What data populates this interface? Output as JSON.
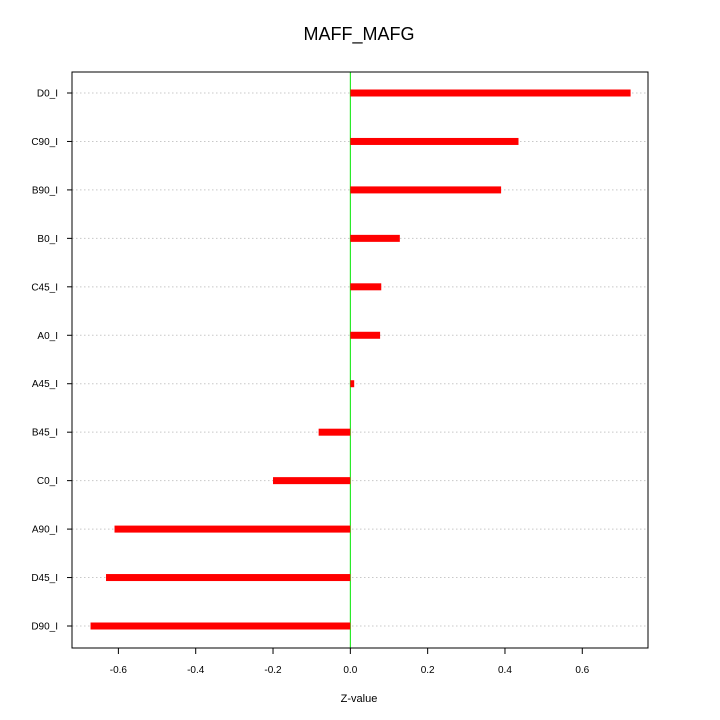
{
  "chart_data": {
    "type": "bar",
    "orientation": "horizontal",
    "title": "MAFF_MAFG",
    "xlabel": "Z-value",
    "ylabel": "",
    "xlim": [
      -0.72,
      0.77
    ],
    "xticks": [
      -0.6,
      -0.4,
      -0.2,
      0.0,
      0.2,
      0.4,
      0.6
    ],
    "xtick_labels": [
      "-0.6",
      "-0.4",
      "-0.2",
      "0.0",
      "0.2",
      "0.4",
      "0.6"
    ],
    "categories": [
      "D0_I",
      "C90_I",
      "B90_I",
      "B0_I",
      "C45_I",
      "A0_I",
      "A45_I",
      "B45_I",
      "C0_I",
      "A90_I",
      "D45_I",
      "D90_I"
    ],
    "values": [
      0.725,
      0.435,
      0.39,
      0.128,
      0.08,
      0.077,
      0.01,
      -0.082,
      -0.2,
      -0.61,
      -0.632,
      -0.672
    ],
    "grid": true,
    "zero_line": true,
    "colors": {
      "bar": "#ff0000",
      "zero_line": "#00e600",
      "axis": "#000000",
      "grid": "#c8c8c8"
    }
  }
}
